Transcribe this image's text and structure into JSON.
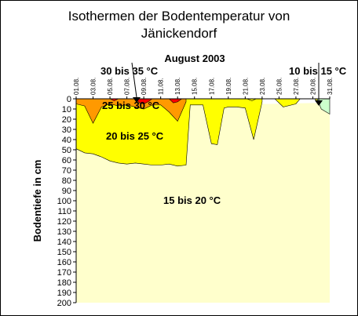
{
  "chart_data": {
    "type": "area",
    "title_line1": "Isothermen der Bodentemperatur von",
    "title_line2": "Jänickendorf",
    "subtitle": "August 2003",
    "ylabel": "Bodentiefe in cm",
    "xlabel": "",
    "ylim": [
      0,
      200
    ],
    "y_inverted": true,
    "y_ticks": [
      0,
      10,
      20,
      30,
      40,
      50,
      60,
      70,
      80,
      90,
      100,
      110,
      120,
      130,
      140,
      150,
      160,
      170,
      180,
      190,
      200
    ],
    "x_ticks": [
      "01.08.",
      "03.08.",
      "05.08.",
      "07.08.",
      "09.08.",
      "11.08.",
      "13.08.",
      "15.08.",
      "17.08.",
      "19.08.",
      "21.08.",
      "23.08.",
      "25.08.",
      "27.08.",
      "29.08.",
      "31.08."
    ],
    "x_range": [
      1,
      31
    ],
    "colors": {
      "zone_15_20": "#ffffcc",
      "zone_20_25": "#ffff00",
      "zone_25_30": "#ff9900",
      "zone_30_35": "#ff0000",
      "zone_10_15": "#ccffcc",
      "background": "#ffffff"
    },
    "zone_labels": {
      "z30_35": "30 bis 35 °C",
      "z25_30": "25 bis 30 °C",
      "z20_25": "20 bis 25 °C",
      "z15_20": "15 bis 20 °C",
      "z10_15": "10 bis 15 °C"
    },
    "series": [
      {
        "zone": "20 bis 25 °C / 15 bis 20 °C boundary",
        "points": [
          [
            1,
            49
          ],
          [
            2,
            53
          ],
          [
            3,
            54
          ],
          [
            4,
            57
          ],
          [
            5,
            61
          ],
          [
            6,
            63
          ],
          [
            7,
            64
          ],
          [
            8,
            63
          ],
          [
            9,
            64
          ],
          [
            10,
            65
          ],
          [
            11,
            65
          ],
          [
            12,
            64
          ],
          [
            13,
            66
          ],
          [
            14,
            65
          ],
          [
            14.5,
            6
          ],
          [
            15,
            6
          ],
          [
            16,
            6
          ],
          [
            17,
            44
          ],
          [
            17.7,
            45
          ],
          [
            18.5,
            9
          ],
          [
            19,
            8
          ],
          [
            20,
            8
          ],
          [
            21,
            9
          ],
          [
            22,
            40
          ],
          [
            23,
            3
          ]
        ]
      },
      {
        "zone": "25 bis 30 °C / 20 bis 25 °C boundary",
        "points": [
          [
            1,
            5
          ],
          [
            2,
            7
          ],
          [
            3,
            24
          ],
          [
            4,
            8
          ],
          [
            5,
            5
          ],
          [
            6,
            7
          ],
          [
            7,
            6
          ],
          [
            8,
            8
          ],
          [
            9,
            10
          ],
          [
            10,
            6
          ],
          [
            11,
            6
          ],
          [
            12,
            13
          ],
          [
            13,
            22
          ],
          [
            14,
            3
          ]
        ]
      },
      {
        "zone": "30 bis 35 °C / 25 bis 30 °C boundary",
        "points": [
          [
            1,
            0
          ],
          [
            5,
            0
          ],
          [
            5.5,
            2
          ],
          [
            6,
            0
          ],
          [
            8,
            0
          ],
          [
            8.5,
            4
          ],
          [
            9,
            5
          ],
          [
            9.5,
            3
          ],
          [
            10,
            0
          ],
          [
            12,
            0
          ],
          [
            12.5,
            4
          ],
          [
            13,
            3
          ],
          [
            13.5,
            0
          ]
        ]
      },
      {
        "zone": "yellow pockets 23.-31.08.",
        "points": [
          [
            21.2,
            0
          ],
          [
            21.8,
            2
          ],
          [
            22.3,
            0
          ],
          [
            24.5,
            0
          ],
          [
            25.5,
            8
          ],
          [
            27,
            5
          ],
          [
            27.5,
            0
          ],
          [
            29.2,
            0
          ],
          [
            29.8,
            5
          ],
          [
            30,
            2
          ],
          [
            29.5,
            0
          ]
        ]
      },
      {
        "zone": "10 bis 15 °C / 15 bis 20 °C boundary",
        "points": [
          [
            29.5,
            0
          ],
          [
            30,
            10
          ],
          [
            31,
            15
          ]
        ]
      }
    ]
  }
}
